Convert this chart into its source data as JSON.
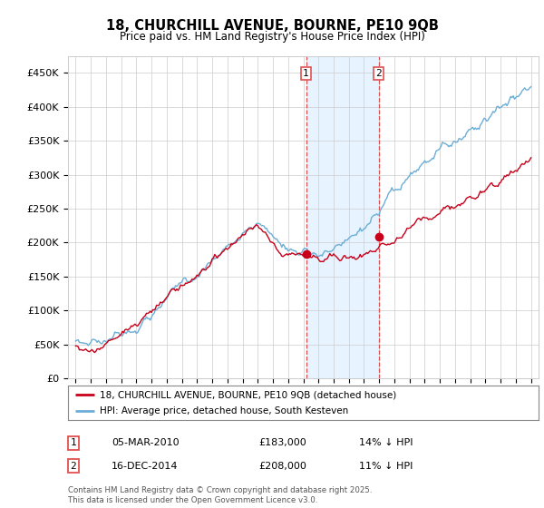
{
  "title": "18, CHURCHILL AVENUE, BOURNE, PE10 9QB",
  "subtitle": "Price paid vs. HM Land Registry's House Price Index (HPI)",
  "yticks": [
    0,
    50000,
    100000,
    150000,
    200000,
    250000,
    300000,
    350000,
    400000,
    450000
  ],
  "ytick_labels": [
    "£0",
    "£50K",
    "£100K",
    "£150K",
    "£200K",
    "£250K",
    "£300K",
    "£350K",
    "£400K",
    "£450K"
  ],
  "ylim": [
    0,
    475000
  ],
  "sale1_date": "05-MAR-2010",
  "sale1_price": 183000,
  "sale1_pct": "14%",
  "sale1_x": 2010.18,
  "sale2_date": "16-DEC-2014",
  "sale2_price": 208000,
  "sale2_pct": "11%",
  "sale2_x": 2014.96,
  "legend1": "18, CHURCHILL AVENUE, BOURNE, PE10 9QB (detached house)",
  "legend2": "HPI: Average price, detached house, South Kesteven",
  "footer": "Contains HM Land Registry data © Crown copyright and database right 2025.\nThis data is licensed under the Open Government Licence v3.0.",
  "hpi_color": "#6baed6",
  "price_color": "#c8001a",
  "shade_color": "#ddeeff",
  "vline_color": "#e05050",
  "bg_color": "#ffffff",
  "grid_color": "#cccccc"
}
